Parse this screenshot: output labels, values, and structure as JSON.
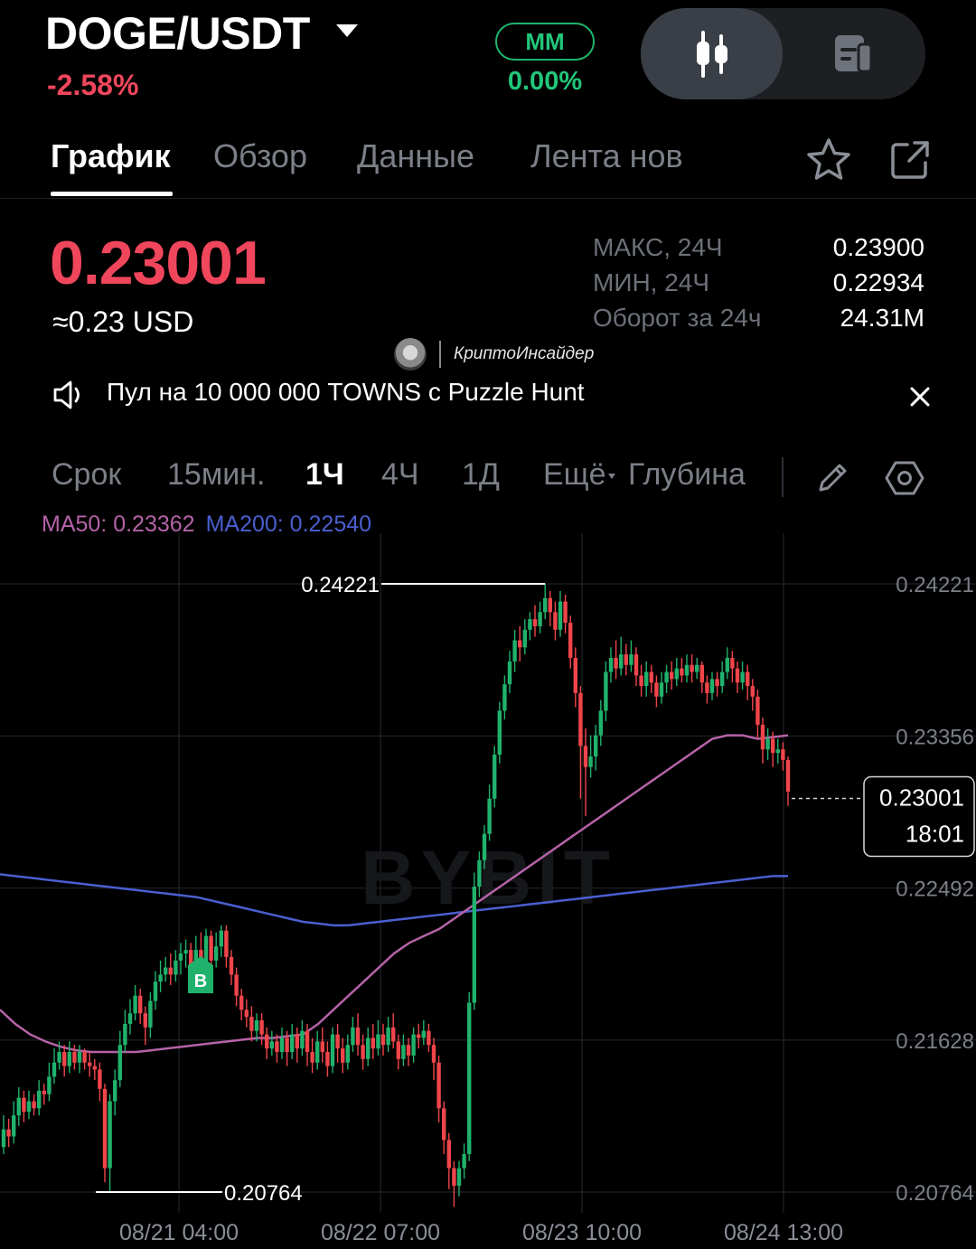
{
  "header": {
    "pair": "DOGE/USDT",
    "change": "-2.58%",
    "mm_label": "MM",
    "mm_value": "0.00%"
  },
  "tabs": [
    {
      "label": "График",
      "active": true
    },
    {
      "label": "Обзор"
    },
    {
      "label": "Данные"
    },
    {
      "label": "Лента нов"
    }
  ],
  "price": {
    "last": "0.23001",
    "usd": "≈0.23 USD",
    "stats": [
      {
        "label": "МАКС, 24Ч",
        "value": "0.23900"
      },
      {
        "label": "МИН, 24Ч",
        "value": "0.22934"
      },
      {
        "label": "Оборот за 24ч",
        "value": "24.31M"
      }
    ]
  },
  "channel_watermark": "КриптоИнсайдер",
  "announcement": "Пул на 10 000 000 TOWNS с Puzzle Hunt",
  "timeframes": {
    "label": "Срок",
    "items": [
      "15мин.",
      "1Ч",
      "4Ч",
      "1Д"
    ],
    "active": "1Ч",
    "more": "Ещё",
    "depth": "Глубина"
  },
  "indicators": {
    "ma50": "MA50: 0.23362",
    "ma200": "MA200: 0.22540"
  },
  "colors": {
    "up": "#20b26c",
    "down": "#ef454a",
    "ma50": "#b563a8",
    "ma200": "#4a5fd0",
    "accent_red": "#f0465c",
    "accent_green": "#21c77a"
  },
  "chart_data": {
    "type": "candlestick",
    "watermark": "BYBIT",
    "y_ticks": [
      "0.24221",
      "0.23356",
      "0.22492",
      "0.21628",
      "0.20764"
    ],
    "ylim": [
      0.20764,
      0.24221
    ],
    "x_ticks": [
      "08/21 04:00",
      "08/22 07:00",
      "08/23 10:00",
      "08/24 13:00"
    ],
    "high_label": "0.24221",
    "low_label": "0.20764",
    "current_price": "0.23001",
    "countdown": "18:01",
    "buy_marker": "B",
    "candles": [
      [
        0.2102,
        0.2112,
        0.212,
        0.2098
      ],
      [
        0.2112,
        0.2108,
        0.2118,
        0.2102
      ],
      [
        0.2108,
        0.212,
        0.2128,
        0.2104
      ],
      [
        0.212,
        0.213,
        0.2136,
        0.2114
      ],
      [
        0.213,
        0.2122,
        0.2134,
        0.2116
      ],
      [
        0.2122,
        0.2128,
        0.2134,
        0.2118
      ],
      [
        0.2128,
        0.2124,
        0.2132,
        0.212
      ],
      [
        0.2124,
        0.2134,
        0.214,
        0.212
      ],
      [
        0.2134,
        0.2132,
        0.2138,
        0.2126
      ],
      [
        0.2132,
        0.2142,
        0.215,
        0.2128
      ],
      [
        0.2142,
        0.215,
        0.2158,
        0.2138
      ],
      [
        0.215,
        0.2156,
        0.2162,
        0.2146
      ],
      [
        0.2156,
        0.2148,
        0.216,
        0.2142
      ],
      [
        0.2148,
        0.2156,
        0.2162,
        0.2144
      ],
      [
        0.2156,
        0.215,
        0.216,
        0.2146
      ],
      [
        0.215,
        0.2156,
        0.216,
        0.2144
      ],
      [
        0.2156,
        0.215,
        0.2158,
        0.2146
      ],
      [
        0.215,
        0.2148,
        0.2156,
        0.2142
      ],
      [
        0.2148,
        0.2146,
        0.2152,
        0.214
      ],
      [
        0.2146,
        0.2135,
        0.215,
        0.2128
      ],
      [
        0.2135,
        0.209,
        0.2138,
        0.2082
      ],
      [
        0.209,
        0.2128,
        0.2132,
        0.2076
      ],
      [
        0.2128,
        0.214,
        0.2146,
        0.212
      ],
      [
        0.214,
        0.216,
        0.2168,
        0.2136
      ],
      [
        0.216,
        0.2172,
        0.218,
        0.2156
      ],
      [
        0.2172,
        0.2178,
        0.2186,
        0.2166
      ],
      [
        0.2178,
        0.2188,
        0.2194,
        0.2174
      ],
      [
        0.2188,
        0.2178,
        0.2192,
        0.2172
      ],
      [
        0.2178,
        0.217,
        0.2182,
        0.216
      ],
      [
        0.217,
        0.2185,
        0.219,
        0.2164
      ],
      [
        0.2185,
        0.2196,
        0.2202,
        0.218
      ],
      [
        0.2196,
        0.22,
        0.2208,
        0.219
      ],
      [
        0.22,
        0.2204,
        0.221,
        0.2196
      ],
      [
        0.2204,
        0.22,
        0.2212,
        0.2194
      ],
      [
        0.22,
        0.2208,
        0.2214,
        0.2196
      ],
      [
        0.2208,
        0.2212,
        0.2218,
        0.22
      ],
      [
        0.2212,
        0.2214,
        0.222,
        0.2204
      ],
      [
        0.2214,
        0.2204,
        0.2218,
        0.22
      ],
      [
        0.2204,
        0.2214,
        0.2222,
        0.22
      ],
      [
        0.2214,
        0.22,
        0.2224,
        0.2195
      ],
      [
        0.22,
        0.2222,
        0.2226,
        0.2196
      ],
      [
        0.2222,
        0.2208,
        0.2225,
        0.2202
      ],
      [
        0.2208,
        0.2216,
        0.2224,
        0.2204
      ],
      [
        0.2216,
        0.2225,
        0.2228,
        0.221
      ],
      [
        0.2225,
        0.221,
        0.2228,
        0.2204
      ],
      [
        0.221,
        0.22,
        0.2214,
        0.2194
      ],
      [
        0.22,
        0.2188,
        0.2204,
        0.2182
      ],
      [
        0.2188,
        0.218,
        0.2192,
        0.2174
      ],
      [
        0.218,
        0.2176,
        0.2186,
        0.217
      ],
      [
        0.2176,
        0.2168,
        0.2182,
        0.2162
      ],
      [
        0.2168,
        0.2174,
        0.2178,
        0.2162
      ],
      [
        0.2174,
        0.2166,
        0.2178,
        0.216
      ],
      [
        0.2166,
        0.2158,
        0.217,
        0.2152
      ],
      [
        0.2158,
        0.2162,
        0.2168,
        0.2154
      ],
      [
        0.2162,
        0.2156,
        0.2166,
        0.215
      ],
      [
        0.2156,
        0.2164,
        0.217,
        0.2152
      ],
      [
        0.2164,
        0.2156,
        0.2168,
        0.2148
      ],
      [
        0.2156,
        0.2166,
        0.2172,
        0.2152
      ],
      [
        0.2166,
        0.2158,
        0.217,
        0.215
      ],
      [
        0.2158,
        0.2168,
        0.2174,
        0.2154
      ],
      [
        0.2168,
        0.2156,
        0.2172,
        0.2148
      ],
      [
        0.2156,
        0.215,
        0.2164,
        0.2144
      ],
      [
        0.215,
        0.2162,
        0.2168,
        0.2146
      ],
      [
        0.2162,
        0.2156,
        0.217,
        0.215
      ],
      [
        0.2156,
        0.2148,
        0.2162,
        0.2142
      ],
      [
        0.2148,
        0.2166,
        0.217,
        0.2144
      ],
      [
        0.2166,
        0.2158,
        0.2172,
        0.215
      ],
      [
        0.2158,
        0.215,
        0.2164,
        0.2144
      ],
      [
        0.215,
        0.216,
        0.2166,
        0.2146
      ],
      [
        0.216,
        0.217,
        0.2176,
        0.2156
      ],
      [
        0.217,
        0.216,
        0.2178,
        0.2154
      ],
      [
        0.216,
        0.2152,
        0.2166,
        0.2146
      ],
      [
        0.2152,
        0.2164,
        0.217,
        0.2148
      ],
      [
        0.2164,
        0.2158,
        0.2172,
        0.2152
      ],
      [
        0.2158,
        0.2166,
        0.2174,
        0.2154
      ],
      [
        0.2166,
        0.216,
        0.2172,
        0.2154
      ],
      [
        0.216,
        0.217,
        0.2176,
        0.2156
      ],
      [
        0.217,
        0.2162,
        0.2178,
        0.2158
      ],
      [
        0.2162,
        0.2152,
        0.2166,
        0.2146
      ],
      [
        0.2152,
        0.216,
        0.2166,
        0.2148
      ],
      [
        0.216,
        0.2154,
        0.2164,
        0.2148
      ],
      [
        0.2154,
        0.2166,
        0.217,
        0.215
      ],
      [
        0.2166,
        0.2164,
        0.2172,
        0.2158
      ],
      [
        0.2164,
        0.2168,
        0.2174,
        0.216
      ],
      [
        0.2168,
        0.216,
        0.2172,
        0.2156
      ],
      [
        0.216,
        0.215,
        0.2164,
        0.214
      ],
      [
        0.215,
        0.2124,
        0.2154,
        0.2116
      ],
      [
        0.2124,
        0.2106,
        0.2128,
        0.2098
      ],
      [
        0.2106,
        0.209,
        0.211,
        0.2078
      ],
      [
        0.209,
        0.208,
        0.2094,
        0.2068
      ],
      [
        0.208,
        0.209,
        0.2094,
        0.2074
      ],
      [
        0.209,
        0.2098,
        0.2104,
        0.2084
      ],
      [
        0.2098,
        0.2184,
        0.219,
        0.2094
      ],
      [
        0.2184,
        0.225,
        0.2258,
        0.218
      ],
      [
        0.225,
        0.2265,
        0.227,
        0.2244
      ],
      [
        0.2265,
        0.228,
        0.2285,
        0.226
      ],
      [
        0.228,
        0.23,
        0.2308,
        0.2276
      ],
      [
        0.23,
        0.2325,
        0.233,
        0.2295
      ],
      [
        0.2325,
        0.235,
        0.2355,
        0.232
      ],
      [
        0.235,
        0.2365,
        0.237,
        0.2345
      ],
      [
        0.2365,
        0.2378,
        0.2384,
        0.236
      ],
      [
        0.2378,
        0.239,
        0.2396,
        0.2372
      ],
      [
        0.239,
        0.2386,
        0.2398,
        0.2378
      ],
      [
        0.2386,
        0.2396,
        0.2402,
        0.2382
      ],
      [
        0.2396,
        0.2402,
        0.2406,
        0.239
      ],
      [
        0.2402,
        0.2398,
        0.241,
        0.2392
      ],
      [
        0.2398,
        0.2406,
        0.2412,
        0.2394
      ],
      [
        0.2406,
        0.2414,
        0.2422,
        0.2402
      ],
      [
        0.2414,
        0.2406,
        0.2418,
        0.2398
      ],
      [
        0.2406,
        0.2396,
        0.2412,
        0.239
      ],
      [
        0.2396,
        0.2412,
        0.2418,
        0.2392
      ],
      [
        0.2412,
        0.24,
        0.2416,
        0.2394
      ],
      [
        0.24,
        0.238,
        0.2404,
        0.2374
      ],
      [
        0.238,
        0.236,
        0.2386,
        0.2352
      ],
      [
        0.236,
        0.233,
        0.2364,
        0.23
      ],
      [
        0.233,
        0.2318,
        0.234,
        0.229
      ],
      [
        0.2318,
        0.2324,
        0.2336,
        0.2312
      ],
      [
        0.2324,
        0.2336,
        0.2342,
        0.2316
      ],
      [
        0.2336,
        0.235,
        0.2356,
        0.233
      ],
      [
        0.235,
        0.2372,
        0.2378,
        0.2344
      ],
      [
        0.2372,
        0.238,
        0.2386,
        0.2366
      ],
      [
        0.238,
        0.2374,
        0.239,
        0.2368
      ],
      [
        0.2374,
        0.2382,
        0.2392,
        0.237
      ],
      [
        0.2382,
        0.2376,
        0.2388,
        0.237
      ],
      [
        0.2376,
        0.2382,
        0.239,
        0.2372
      ],
      [
        0.2382,
        0.237,
        0.2386,
        0.2364
      ],
      [
        0.237,
        0.2364,
        0.2376,
        0.2358
      ],
      [
        0.2364,
        0.2372,
        0.2378,
        0.2358
      ],
      [
        0.2372,
        0.2366,
        0.2376,
        0.236
      ],
      [
        0.2366,
        0.2358,
        0.237,
        0.2352
      ],
      [
        0.2358,
        0.2366,
        0.2372,
        0.2354
      ],
      [
        0.2366,
        0.2372,
        0.2376,
        0.236
      ],
      [
        0.2372,
        0.2368,
        0.2378,
        0.2362
      ],
      [
        0.2368,
        0.2374,
        0.238,
        0.2364
      ],
      [
        0.2374,
        0.237,
        0.238,
        0.2366
      ],
      [
        0.237,
        0.2376,
        0.2382,
        0.2366
      ],
      [
        0.2376,
        0.2372,
        0.2382,
        0.2366
      ],
      [
        0.2372,
        0.2376,
        0.238,
        0.2368
      ],
      [
        0.2376,
        0.2366,
        0.2378,
        0.236
      ],
      [
        0.2366,
        0.236,
        0.237,
        0.2354
      ],
      [
        0.236,
        0.2368,
        0.2372,
        0.2356
      ],
      [
        0.2368,
        0.2364,
        0.2372,
        0.2358
      ],
      [
        0.2364,
        0.2372,
        0.2378,
        0.236
      ],
      [
        0.2372,
        0.238,
        0.2386,
        0.2368
      ],
      [
        0.238,
        0.2374,
        0.2384,
        0.2366
      ],
      [
        0.2374,
        0.2366,
        0.2378,
        0.236
      ],
      [
        0.2366,
        0.2372,
        0.2378,
        0.2362
      ],
      [
        0.2372,
        0.2364,
        0.2376,
        0.2356
      ],
      [
        0.2364,
        0.2358,
        0.2368,
        0.235
      ],
      [
        0.2358,
        0.2342,
        0.2362,
        0.2334
      ],
      [
        0.2342,
        0.2328,
        0.2346,
        0.232
      ],
      [
        0.2328,
        0.2334,
        0.234,
        0.2322
      ],
      [
        0.2334,
        0.2326,
        0.2338,
        0.2318
      ],
      [
        0.2326,
        0.2328,
        0.2334,
        0.232
      ],
      [
        0.2328,
        0.2322,
        0.2332,
        0.2316
      ],
      [
        0.2322,
        0.2304,
        0.2324,
        0.2296
      ]
    ],
    "ma200": [
      0.2257,
      0.2256,
      0.2255,
      0.2254,
      0.2253,
      0.2252,
      0.2251,
      0.225,
      0.2249,
      0.2248,
      0.2247,
      0.2246,
      0.2245,
      0.2244,
      0.2242,
      0.224,
      0.2238,
      0.2236,
      0.2234,
      0.2232,
      0.223,
      0.2229,
      0.2228,
      0.2228,
      0.2229,
      0.223,
      0.2231,
      0.2232,
      0.2233,
      0.2234,
      0.2235,
      0.2236,
      0.2237,
      0.2238,
      0.2239,
      0.224,
      0.2241,
      0.2242,
      0.2243,
      0.2244,
      0.2245,
      0.2246,
      0.2247,
      0.2248,
      0.2249,
      0.225,
      0.2251,
      0.2252,
      0.2253,
      0.2254,
      0.2255,
      0.2256,
      0.2256
    ],
    "ma50": [
      0.218,
      0.2172,
      0.2166,
      0.2162,
      0.2159,
      0.2157,
      0.2156,
      0.2156,
      0.2156,
      0.2156,
      0.2157,
      0.2158,
      0.2159,
      0.216,
      0.2161,
      0.2162,
      0.2163,
      0.2164,
      0.2164,
      0.2165,
      0.2166,
      0.2172,
      0.218,
      0.2188,
      0.2196,
      0.2204,
      0.2212,
      0.2218,
      0.2222,
      0.2226,
      0.2232,
      0.2238,
      0.2244,
      0.225,
      0.2256,
      0.2262,
      0.2268,
      0.2274,
      0.228,
      0.2286,
      0.2292,
      0.2298,
      0.2304,
      0.231,
      0.2316,
      0.2322,
      0.2328,
      0.2334,
      0.2336,
      0.2336,
      0.2334,
      0.2335,
      0.2336
    ]
  }
}
